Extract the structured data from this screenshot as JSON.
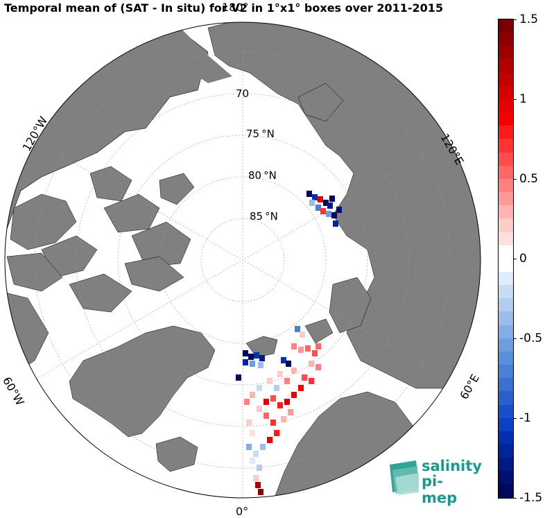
{
  "title": "Temporal mean of (SAT - In situ) for V2 in 1°x1° boxes over 2011-2015",
  "map": {
    "projection": "north-polar-stereographic",
    "land_color": "#808080",
    "ocean_color": "#ffffff",
    "lat_labels": [
      {
        "value": "70",
        "text": "70"
      },
      {
        "value": "75",
        "text": "75 °N"
      },
      {
        "value": "80",
        "text": "80 °N"
      },
      {
        "value": "85",
        "text": "85 °N"
      }
    ],
    "lon_labels": {
      "top": "180°",
      "upper_left": "120°W",
      "upper_right": "120°E",
      "lower_left": "60°W",
      "lower_right": "60°E",
      "bottom": "0°"
    }
  },
  "colorbar": {
    "min": -1.5,
    "max": 1.5,
    "ticks": [
      "1.5",
      "1",
      "0.5",
      "0",
      "-0.5",
      "-1",
      "-1.5"
    ],
    "colors": [
      "#7a0000",
      "#8c0000",
      "#9e0000",
      "#b00000",
      "#c20000",
      "#d40000",
      "#e60000",
      "#f80000",
      "#ff1a1a",
      "#ff3333",
      "#ff4d4d",
      "#ff6666",
      "#ff8080",
      "#ff9999",
      "#ffb3b3",
      "#ffcccc",
      "#ffe0e0",
      "#ffffff",
      "#ffffff",
      "#e0ecfa",
      "#c9dcf5",
      "#b3ccf0",
      "#9cbdeb",
      "#85ade6",
      "#6e9de0",
      "#5a8fdb",
      "#4a80d6",
      "#3a70d1",
      "#2a60cc",
      "#1a50c7",
      "#0a40c2",
      "#0030b0",
      "#00249a",
      "#001a85",
      "#001070",
      "#00085e"
    ]
  },
  "logo": {
    "line1": "salinity",
    "line2": "pi-mep"
  }
}
